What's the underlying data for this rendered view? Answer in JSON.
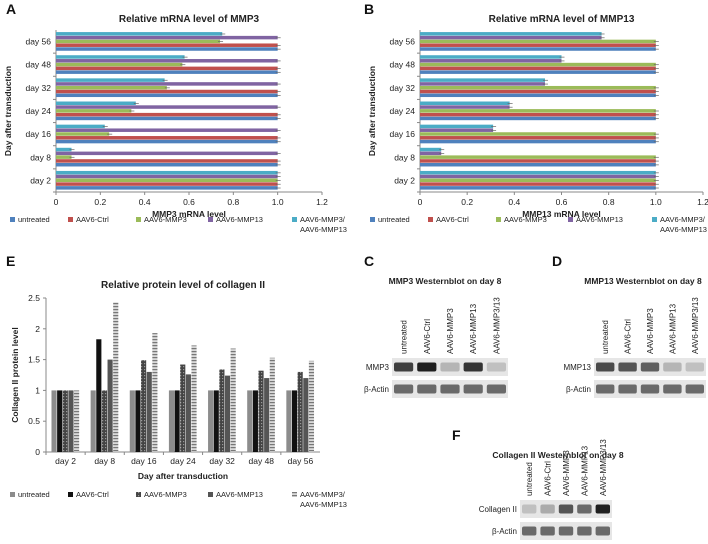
{
  "colors": {
    "untreated": "#4f81bd",
    "ctrl": "#c0504d",
    "mmp3": "#9bbb59",
    "mmp13": "#8064a2",
    "combo": "#4bacc6",
    "e_untreated": "#8c8c8c",
    "e_ctrl": "#111111",
    "e_mmp3": "#3a3a3a",
    "e_mmp13": "#555555",
    "e_combo": "#bdbdbd"
  },
  "legend": {
    "untreated": "untreated",
    "ctrl": "AAV6-Ctrl",
    "mmp3": "AAV6-MMP3",
    "mmp13": "AAV6-MMP13",
    "combo_line1": "AAV6-MMP3/",
    "combo_line2": "AAV6-MMP13"
  },
  "chart_data": [
    {
      "panel": "A",
      "type": "bar",
      "orientation": "horizontal",
      "title": "Relative mRNA level of MMP3",
      "xlabel": "MMP3 mRNA level",
      "ylabel": "Day after transduction",
      "xlim": [
        0,
        1.2
      ],
      "xticks": [
        "0",
        "0.2",
        "0.4",
        "0.6",
        "0.8",
        "1.0",
        "1.2"
      ],
      "categories": [
        "day 2",
        "day 8",
        "day 16",
        "day 24",
        "day 32",
        "day 48",
        "day 56"
      ],
      "series": [
        {
          "name": "untreated",
          "values": [
            1,
            1,
            1,
            1,
            1,
            1,
            1
          ]
        },
        {
          "name": "AAV6-Ctrl",
          "values": [
            1,
            1,
            1,
            1,
            1,
            1,
            1
          ]
        },
        {
          "name": "AAV6-MMP3",
          "values": [
            1,
            0.07,
            0.24,
            0.34,
            0.5,
            0.57,
            0.74
          ]
        },
        {
          "name": "AAV6-MMP13",
          "values": [
            1,
            1,
            1,
            1,
            1,
            1,
            1
          ]
        },
        {
          "name": "AAV6-MMP3/AAV6-MMP13",
          "values": [
            1,
            0.07,
            0.22,
            0.36,
            0.49,
            0.58,
            0.75
          ]
        }
      ]
    },
    {
      "panel": "B",
      "type": "bar",
      "orientation": "horizontal",
      "title": "Relative mRNA level of MMP13",
      "xlabel": "MMP13 mRNA level",
      "ylabel": "Day after transduction",
      "xlim": [
        0,
        1.2
      ],
      "xticks": [
        "0",
        "0.2",
        "0.4",
        "0.6",
        "0.8",
        "1.0",
        "1.2"
      ],
      "categories": [
        "day 2",
        "day 8",
        "day 16",
        "day 24",
        "day 32",
        "day 48",
        "day 56"
      ],
      "series": [
        {
          "name": "untreated",
          "values": [
            1,
            1,
            1,
            1,
            1,
            1,
            1
          ]
        },
        {
          "name": "AAV6-Ctrl",
          "values": [
            1,
            1,
            1,
            1,
            1,
            1,
            1
          ]
        },
        {
          "name": "AAV6-MMP3",
          "values": [
            1,
            1,
            1,
            1,
            1,
            1,
            1
          ]
        },
        {
          "name": "AAV6-MMP13",
          "values": [
            1,
            0.09,
            0.31,
            0.38,
            0.53,
            0.6,
            0.77
          ]
        },
        {
          "name": "AAV6-MMP3/AAV6-MMP13",
          "values": [
            1,
            0.09,
            0.31,
            0.38,
            0.53,
            0.6,
            0.77
          ]
        }
      ]
    },
    {
      "panel": "E",
      "type": "bar",
      "orientation": "vertical",
      "title": "Relative protein level of collagen II",
      "xlabel": "Day after transduction",
      "ylabel": "Collagen II protein level",
      "ylim": [
        0,
        2.5
      ],
      "yticks": [
        "0",
        "0.5",
        "1",
        "1.5",
        "2",
        "2.5"
      ],
      "categories": [
        "day 2",
        "day 8",
        "day 16",
        "day 24",
        "day 32",
        "day 48",
        "day 56"
      ],
      "series": [
        {
          "name": "untreated",
          "values": [
            1,
            1,
            1,
            1,
            1,
            1,
            1
          ]
        },
        {
          "name": "AAV6-Ctrl",
          "values": [
            1,
            1.83,
            1.0,
            1.0,
            1.0,
            1.0,
            1.0
          ]
        },
        {
          "name": "AAV6-MMP3",
          "values": [
            1,
            1.0,
            1.49,
            1.42,
            1.34,
            1.32,
            1.3
          ]
        },
        {
          "name": "AAV6-MMP13",
          "values": [
            1,
            1.5,
            1.3,
            1.26,
            1.24,
            1.2,
            1.2
          ]
        },
        {
          "name": "AAV6-MMP3/AAV6-MMP13",
          "values": [
            1,
            2.43,
            1.93,
            1.73,
            1.68,
            1.53,
            1.48
          ]
        }
      ]
    }
  ],
  "blots": {
    "C": {
      "panel": "C",
      "title": "MMP3 Westernblot on day 8",
      "lanes": [
        "untreated",
        "AAV6-Ctrl",
        "AAV6-MMP3",
        "AAV6-MMP13",
        "AAV6-MMP3/13"
      ],
      "rows": [
        "MMP3",
        "β-Actin"
      ],
      "intensity": [
        [
          0.8,
          0.95,
          0.25,
          0.85,
          0.2
        ],
        [
          0.6,
          0.6,
          0.6,
          0.6,
          0.6
        ]
      ]
    },
    "D": {
      "panel": "D",
      "title": "MMP13 Westernblot on day 8",
      "lanes": [
        "untreated",
        "AAV6-Ctrl",
        "AAV6-MMP3",
        "AAV6-MMP13",
        "AAV6-MMP3/13"
      ],
      "rows": [
        "MMP13",
        "β-Actin"
      ],
      "intensity": [
        [
          0.75,
          0.7,
          0.65,
          0.25,
          0.2
        ],
        [
          0.6,
          0.6,
          0.6,
          0.6,
          0.6
        ]
      ]
    },
    "F": {
      "panel": "F",
      "title": "Collagen II Westernblot on day 8",
      "lanes": [
        "untreated",
        "AAV6-Ctrl",
        "AAV6-MMP3",
        "AAV6-MMP13",
        "AAV6-MMP3/13"
      ],
      "rows": [
        "Collagen II",
        "β-Actin"
      ],
      "intensity": [
        [
          0.2,
          0.3,
          0.7,
          0.6,
          0.95
        ],
        [
          0.6,
          0.6,
          0.6,
          0.6,
          0.6
        ]
      ]
    }
  }
}
